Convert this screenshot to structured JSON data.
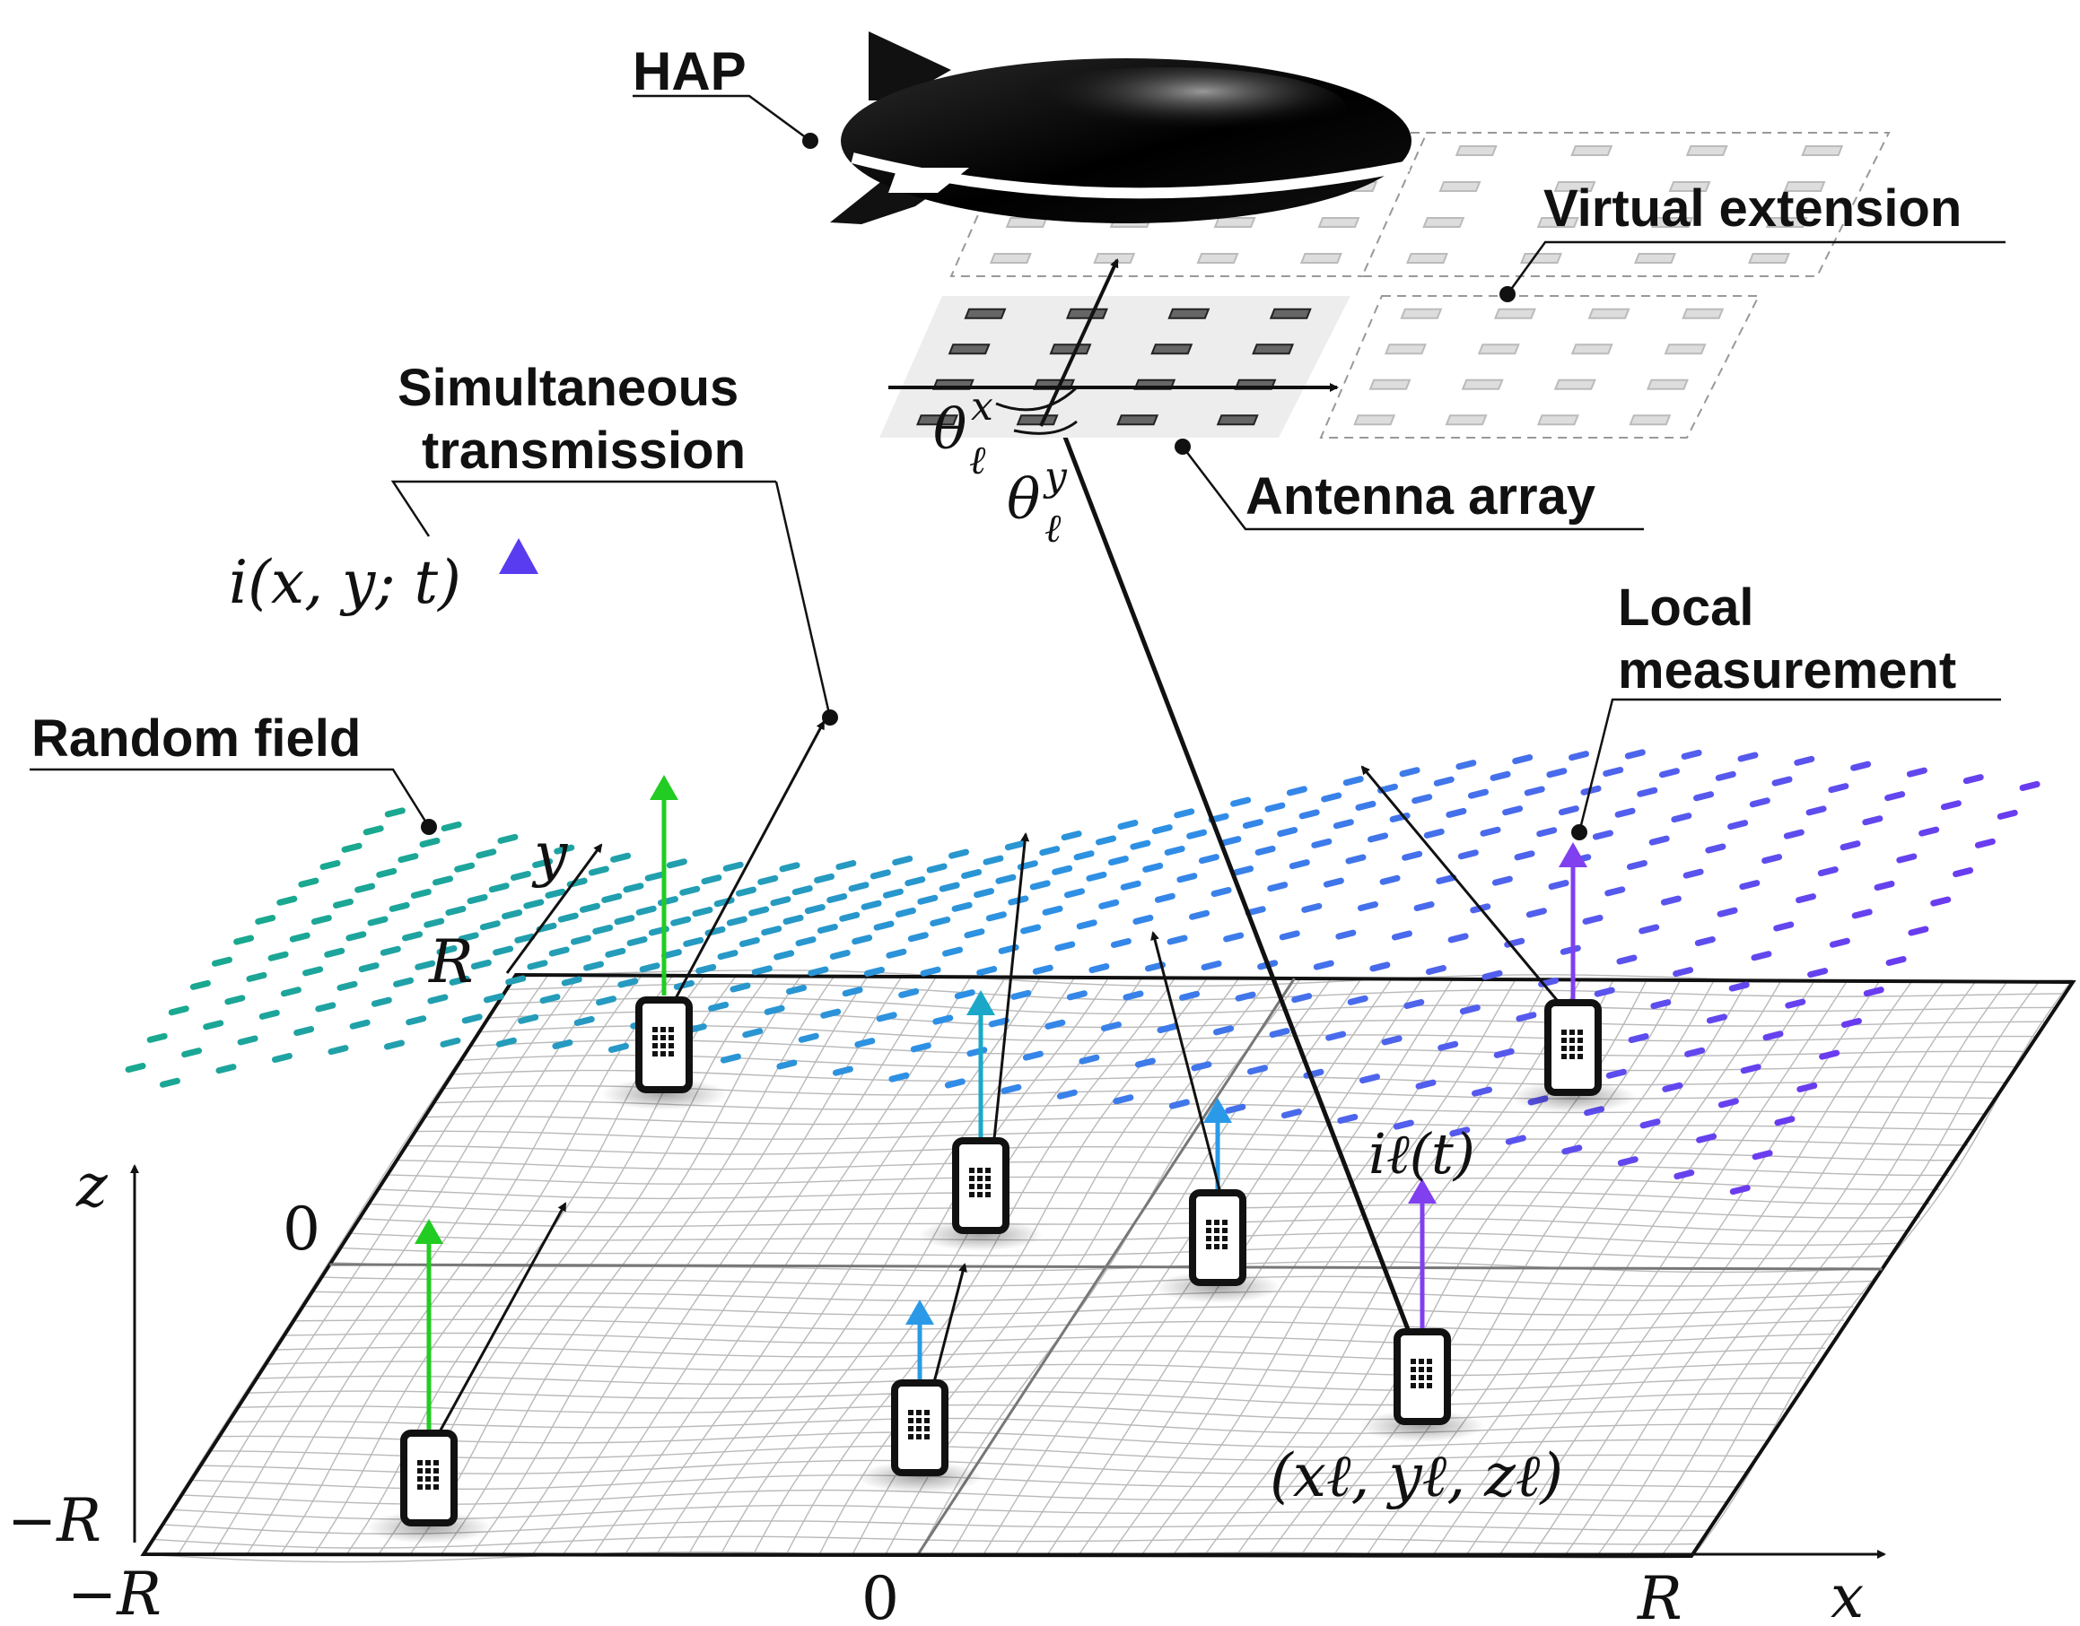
{
  "labels": {
    "hap": "HAP",
    "virtual_extension": "Virtual extension",
    "simultaneous": "Simultaneous",
    "transmission": "transmission",
    "antenna_array": "Antenna array",
    "local": "Local",
    "measurement": "measurement",
    "random_field": "Random field"
  },
  "math": {
    "intensity": "i(x, y; t)",
    "theta_x": "θ",
    "theta_x_sup": "x",
    "theta_x_sub": "ℓ",
    "theta_y": "θ",
    "theta_y_sup": "y",
    "theta_y_sub": "ℓ",
    "local_intensity": "iℓ(t)",
    "position": "(xℓ, yℓ, zℓ)"
  },
  "axes": {
    "x_label": "x",
    "y_label": "y",
    "z_label": "z",
    "x_min": "−R",
    "x_mid": "0",
    "x_max": "R",
    "y_min": "−R",
    "y_mid": "0",
    "y_max": "R"
  },
  "colors": {
    "field_start": "#1aa890",
    "field_mid": "#2f8fe8",
    "field_end": "#6a3cf0",
    "green_arrow": "#22cc22",
    "cyan_arrow": "#1ba8c8",
    "blue_arrow": "#2a9ae8",
    "violet_arrow": "#8040f0",
    "intensity_arrow_top": "#5a3cf0",
    "intensity_arrow_bottom": "#1aa890"
  },
  "devices": [
    "phone-icon",
    "phone-icon",
    "phone-icon",
    "phone-icon",
    "phone-icon",
    "phone-icon",
    "phone-icon"
  ]
}
